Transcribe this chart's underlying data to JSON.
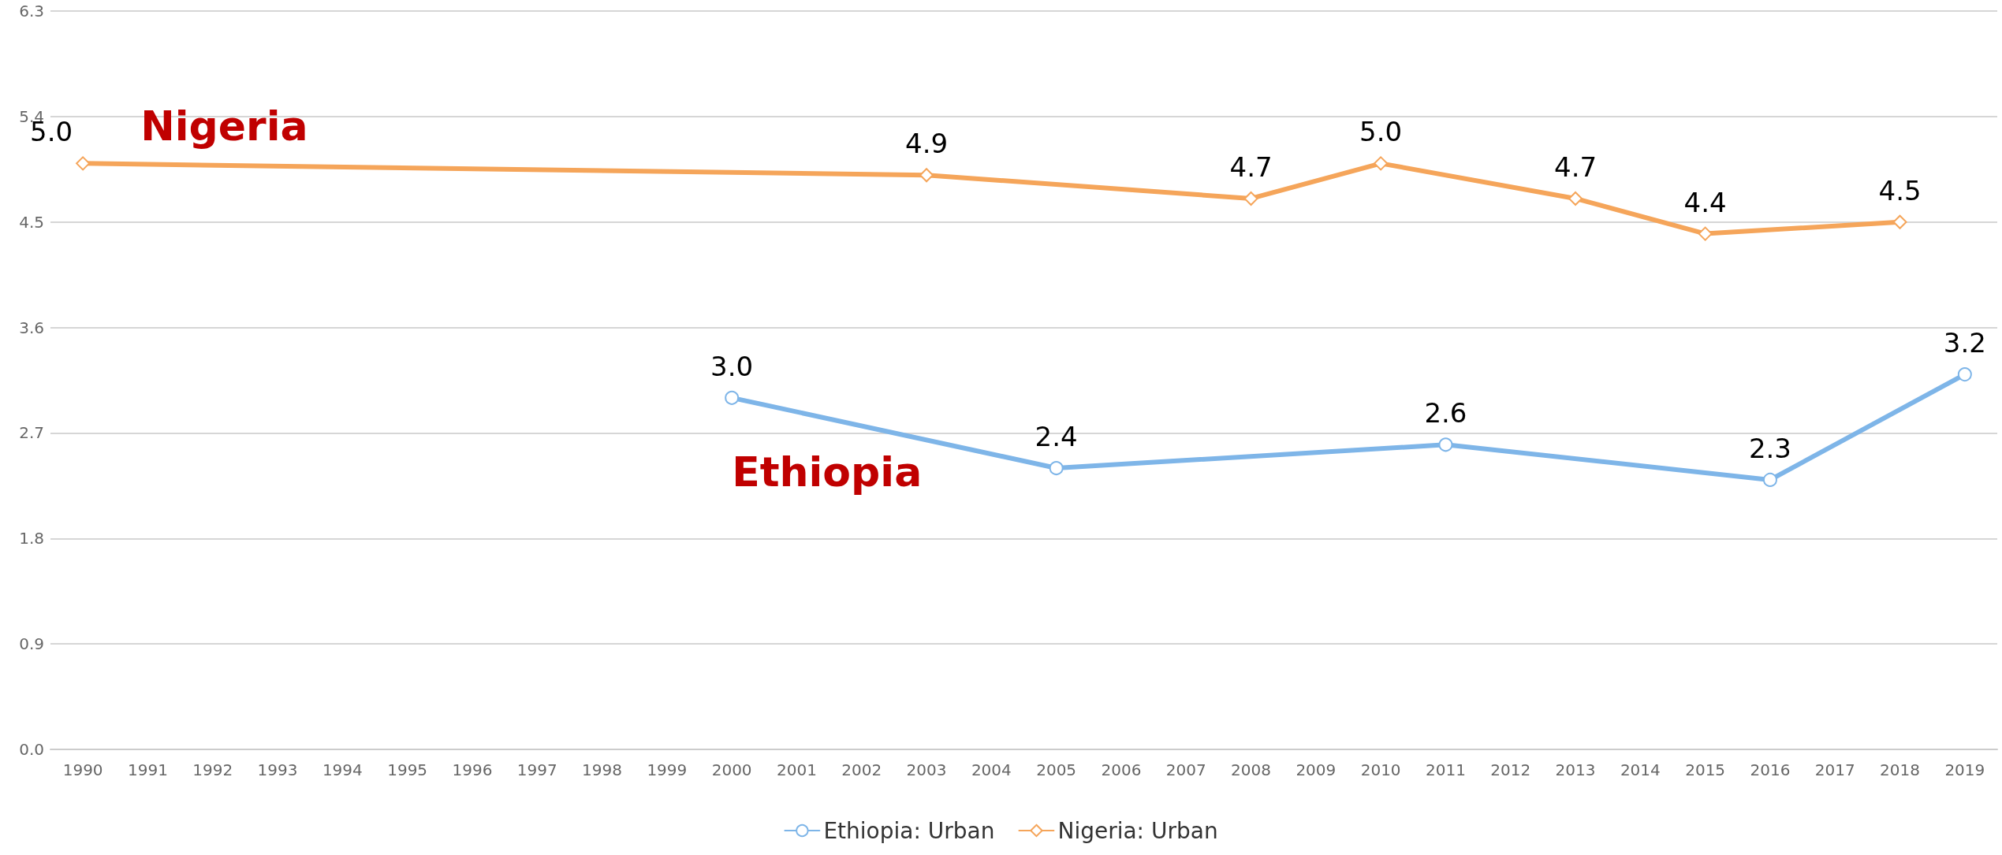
{
  "chart_data": {
    "type": "line",
    "categories": [
      "1990",
      "1991",
      "1992",
      "1993",
      "1994",
      "1995",
      "1996",
      "1997",
      "1998",
      "1999",
      "2000",
      "2001",
      "2002",
      "2003",
      "2004",
      "2005",
      "2006",
      "2007",
      "2008",
      "2009",
      "2010",
      "2011",
      "2012",
      "2013",
      "2014",
      "2015",
      "2016",
      "2017",
      "2018",
      "2019"
    ],
    "series": [
      {
        "name": "Ethiopia: Urban",
        "color": "#7eb5e8",
        "marker": "circle",
        "values": [
          null,
          null,
          null,
          null,
          null,
          null,
          null,
          null,
          null,
          null,
          3.0,
          null,
          null,
          null,
          null,
          2.4,
          null,
          null,
          null,
          null,
          null,
          2.6,
          null,
          null,
          null,
          null,
          2.3,
          null,
          null,
          3.2
        ],
        "value_labels": [
          null,
          null,
          null,
          null,
          null,
          null,
          null,
          null,
          null,
          null,
          "3.0",
          null,
          null,
          null,
          null,
          "2.4",
          null,
          null,
          null,
          null,
          null,
          "2.6",
          null,
          null,
          null,
          null,
          "2.3",
          null,
          null,
          "3.2"
        ]
      },
      {
        "name": "Nigeria: Urban",
        "color": "#f5a55a",
        "marker": "diamond",
        "values": [
          5.0,
          null,
          null,
          null,
          null,
          null,
          null,
          null,
          null,
          null,
          null,
          null,
          null,
          4.9,
          null,
          null,
          null,
          null,
          4.7,
          null,
          5.0,
          null,
          null,
          4.7,
          null,
          4.4,
          null,
          null,
          4.5,
          null
        ],
        "value_labels": [
          "5.0",
          null,
          null,
          null,
          null,
          null,
          null,
          null,
          null,
          null,
          null,
          null,
          null,
          "4.9",
          null,
          null,
          null,
          null,
          "4.7",
          null,
          "5.0",
          null,
          null,
          "4.7",
          null,
          "4.4",
          null,
          null,
          "4.5",
          null
        ]
      }
    ],
    "ylim": [
      0,
      6.3
    ],
    "yticks": [
      {
        "value": 0,
        "label": "0.0"
      },
      0.9,
      1.8,
      2.7,
      3.6,
      4.5,
      5.4,
      6.3
    ],
    "grid": "y",
    "legend": "bottom",
    "line_style": "solid",
    "annotations": [
      "Ethiopia",
      "Nigeria"
    ]
  }
}
